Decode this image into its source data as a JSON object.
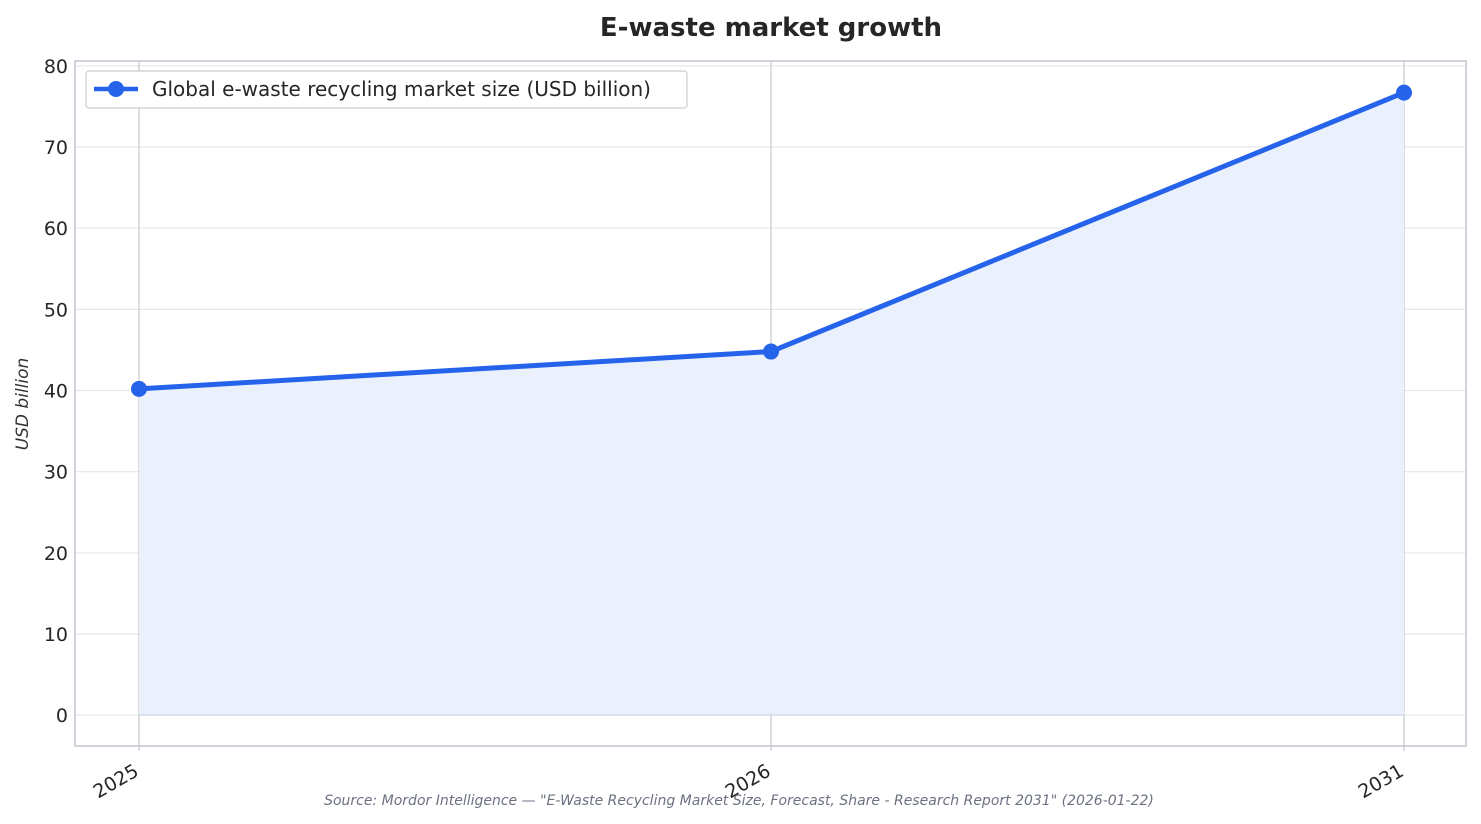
{
  "chart_data": {
    "type": "line",
    "title": "E-waste market growth",
    "xlabel": "",
    "ylabel": "USD billion",
    "x": [
      "2025",
      "2026",
      "2031"
    ],
    "series": [
      {
        "name": "Global e-waste recycling market size (USD billion)",
        "values": [
          40.2,
          44.8,
          76.7
        ]
      }
    ],
    "ylim": [
      -3.8,
      80.6
    ],
    "yticks": [
      0,
      10,
      20,
      30,
      40,
      50,
      60,
      70,
      80
    ],
    "grid": true,
    "area_fill": true,
    "legend_position": "top-left",
    "colors": {
      "line": "#2563eb",
      "fill": "#eaf0fc",
      "grid": "#e8e8e8",
      "axis": "#c4c8d0"
    },
    "source": "Source: Mordor Intelligence — \"E-Waste Recycling Market Size, Forecast, Share - Research Report 2031\" (2026-01-22)"
  }
}
